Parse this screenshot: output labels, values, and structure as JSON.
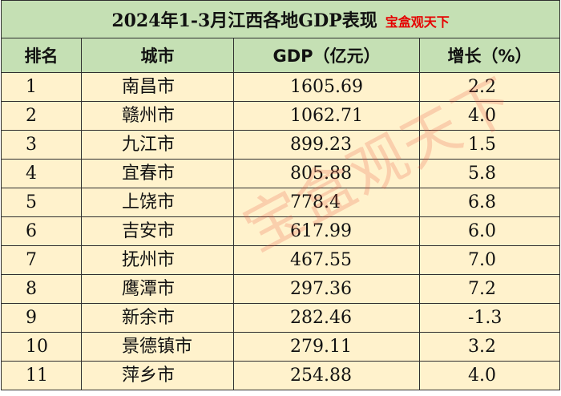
{
  "title": "2024年1-3月江西各地GDP表现",
  "brand": "宝盒观天下",
  "watermark": "宝盒观天下",
  "headers": {
    "rank": "排名",
    "city": "城市",
    "gdp": "GDP（亿元）",
    "growth": "增长（%）"
  },
  "rows": [
    {
      "rank": "1",
      "city": "南昌市",
      "gdp": "1605.69",
      "growth": "2.2"
    },
    {
      "rank": "2",
      "city": "赣州市",
      "gdp": "1062.71",
      "growth": "4.0"
    },
    {
      "rank": "3",
      "city": "九江市",
      "gdp": "899.23",
      "growth": "1.5"
    },
    {
      "rank": "4",
      "city": "宜春市",
      "gdp": "805.88",
      "growth": "5.8"
    },
    {
      "rank": "5",
      "city": "上饶市",
      "gdp": "778.4",
      "growth": "6.8"
    },
    {
      "rank": "6",
      "city": "吉安市",
      "gdp": "617.99",
      "growth": "6.0"
    },
    {
      "rank": "7",
      "city": "抚州市",
      "gdp": "467.55",
      "growth": "7.0"
    },
    {
      "rank": "8",
      "city": "鹰潭市",
      "gdp": "297.36",
      "growth": "7.2"
    },
    {
      "rank": "9",
      "city": "新余市",
      "gdp": "282.46",
      "growth": "-1.3"
    },
    {
      "rank": "10",
      "city": "景德镇市",
      "gdp": "279.11",
      "growth": "3.2"
    },
    {
      "rank": "11",
      "city": "萍乡市",
      "gdp": "254.88",
      "growth": "4.0"
    }
  ],
  "colors": {
    "header_bg": "#c5e0b4",
    "row_bg": "#fff2cc",
    "brand": "#e60000"
  }
}
